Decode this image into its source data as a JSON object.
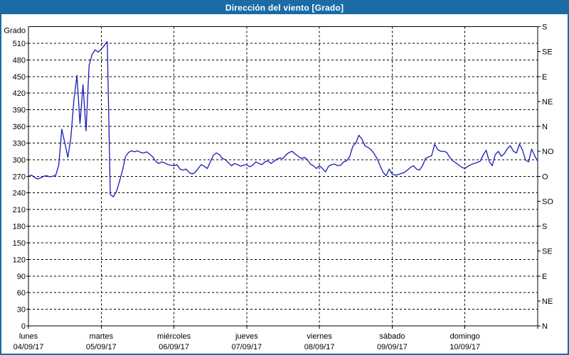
{
  "window": {
    "title": "Dirección del viento [Grado]"
  },
  "colors": {
    "frame_border": "#1b6ba6",
    "titlebar_bg": "#1b6ba6",
    "titlebar_text": "#ffffff",
    "plot_bg": "#ffffff",
    "grid": "#000000",
    "axis": "#000000",
    "line": "#1a1ab8",
    "label_text": "#000000"
  },
  "chart_data": {
    "type": "line",
    "title": "Dirección del viento [Grado]",
    "ylabel_left": "Grado",
    "unit": "Grado",
    "ylim": [
      0,
      540
    ],
    "grid": "dashed",
    "legend_position": "none",
    "y_left_ticks": [
      0,
      30,
      60,
      90,
      120,
      150,
      180,
      210,
      240,
      270,
      300,
      330,
      360,
      390,
      420,
      450,
      480,
      510
    ],
    "y_right_ticks": [
      {
        "value": 540,
        "label": "S"
      },
      {
        "value": 495,
        "label": "SE"
      },
      {
        "value": 450,
        "label": "E"
      },
      {
        "value": 405,
        "label": "NE"
      },
      {
        "value": 360,
        "label": "N"
      },
      {
        "value": 315,
        "label": "NO"
      },
      {
        "value": 270,
        "label": "O"
      },
      {
        "value": 225,
        "label": "SO"
      },
      {
        "value": 180,
        "label": "S"
      },
      {
        "value": 135,
        "label": "SE"
      },
      {
        "value": 90,
        "label": "E"
      },
      {
        "value": 45,
        "label": "NE"
      },
      {
        "value": 0,
        "label": "N"
      }
    ],
    "x_days": [
      {
        "name": "lunes",
        "date": "04/09/17"
      },
      {
        "name": "martes",
        "date": "05/09/17"
      },
      {
        "name": "miércoles",
        "date": "06/09/17"
      },
      {
        "name": "jueves",
        "date": "07/09/17"
      },
      {
        "name": "viernes",
        "date": "08/09/17"
      },
      {
        "name": "sábado",
        "date": "09/09/17"
      },
      {
        "name": "domingo",
        "date": "10/09/17"
      }
    ],
    "series": [
      {
        "name": "Dirección del viento",
        "sampling": "hourly",
        "values": [
          270,
          272,
          268,
          265,
          267,
          270,
          271,
          269,
          270,
          272,
          290,
          355,
          330,
          304,
          340,
          408,
          452,
          365,
          435,
          352,
          470,
          490,
          498,
          494,
          499,
          506,
          513,
          237,
          233,
          242,
          260,
          280,
          305,
          313,
          316,
          314,
          316,
          313,
          312,
          314,
          310,
          305,
          297,
          293,
          296,
          294,
          291,
          290,
          289,
          291,
          283,
          281,
          283,
          277,
          274,
          277,
          284,
          291,
          288,
          284,
          296,
          308,
          312,
          309,
          302,
          300,
          294,
          289,
          293,
          291,
          288,
          290,
          291,
          287,
          290,
          296,
          293,
          291,
          296,
          298,
          293,
          297,
          301,
          303,
          302,
          309,
          313,
          315,
          310,
          306,
          302,
          304,
          300,
          292,
          289,
          284,
          289,
          284,
          278,
          288,
          291,
          292,
          289,
          290,
          296,
          298,
          306,
          324,
          330,
          344,
          337,
          325,
          322,
          318,
          311,
          302,
          289,
          277,
          271,
          283,
          274,
          272,
          273,
          275,
          277,
          281,
          286,
          289,
          283,
          281,
          289,
          302,
          305,
          307,
          328,
          318,
          315,
          315,
          313,
          304,
          298,
          294,
          290,
          286,
          284,
          288,
          291,
          293,
          295,
          297,
          308,
          317,
          297,
          289,
          309,
          315,
          306,
          311,
          320,
          325,
          315,
          312,
          328,
          317,
          299,
          296,
          319,
          307,
          297
        ]
      }
    ]
  }
}
